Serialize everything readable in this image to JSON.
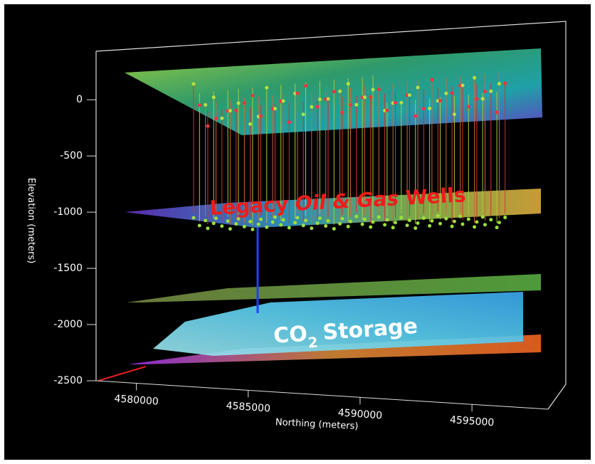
{
  "chart_data": {
    "type": "3d-surface",
    "y_label": "Elevation (meters)",
    "x_label": "Northing (meters)",
    "ylim": [
      -2500,
      400
    ],
    "yticks": [
      0,
      -500,
      -1000,
      -1500,
      -2000,
      -2500
    ],
    "xlim": [
      4578200,
      4598400
    ],
    "xticks": [
      4580000,
      4585000,
      4590000,
      4595000
    ],
    "annotations": {
      "wells": [
        "Legacy",
        "Oil & Gas",
        "Wells"
      ],
      "storage": [
        "CO",
        "2",
        "Storage"
      ]
    }
  }
}
